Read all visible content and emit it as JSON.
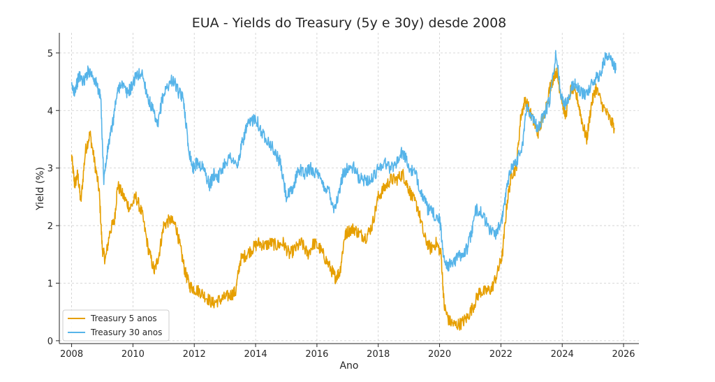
{
  "chart_data": {
    "type": "line",
    "title": "EUA - Yields do Treasury (5y e 30y) desde 2008",
    "xlabel": "Ano",
    "ylabel": "Yield (%)",
    "xlim": [
      2007.6,
      2026.5
    ],
    "ylim": [
      -0.05,
      5.35
    ],
    "xticks": [
      2008,
      2010,
      2012,
      2014,
      2016,
      2018,
      2020,
      2022,
      2024,
      2026
    ],
    "yticks": [
      0,
      1,
      2,
      3,
      4,
      5
    ],
    "grid": true,
    "legend_position": "lower-left",
    "series": [
      {
        "name": "Treasury 5 anos",
        "color": "#E69F00",
        "x": [
          2008.0,
          2008.1,
          2008.2,
          2008.3,
          2008.45,
          2008.6,
          2008.75,
          2008.9,
          2009.0,
          2009.1,
          2009.25,
          2009.4,
          2009.5,
          2009.7,
          2009.9,
          2010.1,
          2010.3,
          2010.5,
          2010.7,
          2010.85,
          2011.0,
          2011.2,
          2011.4,
          2011.55,
          2011.7,
          2011.85,
          2012.0,
          2012.2,
          2012.4,
          2012.6,
          2012.8,
          2013.0,
          2013.2,
          2013.35,
          2013.5,
          2013.7,
          2013.9,
          2014.1,
          2014.3,
          2014.5,
          2014.7,
          2014.9,
          2015.1,
          2015.3,
          2015.5,
          2015.7,
          2015.9,
          2016.1,
          2016.3,
          2016.5,
          2016.6,
          2016.75,
          2016.9,
          2017.0,
          2017.2,
          2017.4,
          2017.6,
          2017.8,
          2018.0,
          2018.2,
          2018.4,
          2018.6,
          2018.8,
          2018.95,
          2019.1,
          2019.3,
          2019.5,
          2019.7,
          2019.9,
          2020.05,
          2020.15,
          2020.3,
          2020.5,
          2020.7,
          2020.9,
          2021.1,
          2021.3,
          2021.5,
          2021.7,
          2021.9,
          2022.05,
          2022.2,
          2022.35,
          2022.5,
          2022.65,
          2022.8,
          2023.0,
          2023.2,
          2023.4,
          2023.6,
          2023.8,
          2023.95,
          2024.1,
          2024.3,
          2024.5,
          2024.65,
          2024.8,
          2024.95,
          2025.1,
          2025.3,
          2025.5,
          2025.7
        ],
        "values": [
          3.2,
          2.7,
          2.9,
          2.4,
          3.3,
          3.6,
          3.1,
          2.6,
          1.6,
          1.4,
          1.9,
          2.1,
          2.7,
          2.5,
          2.3,
          2.5,
          2.2,
          1.6,
          1.2,
          1.5,
          2.0,
          2.1,
          2.0,
          1.6,
          1.2,
          0.95,
          0.9,
          0.85,
          0.75,
          0.65,
          0.7,
          0.75,
          0.8,
          0.85,
          1.4,
          1.5,
          1.6,
          1.7,
          1.65,
          1.7,
          1.65,
          1.7,
          1.5,
          1.6,
          1.7,
          1.5,
          1.7,
          1.6,
          1.4,
          1.2,
          1.1,
          1.2,
          1.8,
          1.9,
          1.95,
          1.85,
          1.8,
          2.0,
          2.5,
          2.65,
          2.8,
          2.8,
          2.9,
          2.7,
          2.5,
          2.3,
          1.8,
          1.6,
          1.7,
          1.5,
          0.6,
          0.35,
          0.27,
          0.3,
          0.4,
          0.6,
          0.85,
          0.85,
          0.9,
          1.2,
          1.5,
          2.4,
          2.9,
          3.0,
          3.9,
          4.2,
          3.9,
          3.6,
          3.9,
          4.4,
          4.7,
          4.3,
          3.9,
          4.4,
          4.2,
          3.8,
          3.5,
          4.1,
          4.4,
          4.1,
          3.9,
          3.7
        ]
      },
      {
        "name": "Treasury 30 anos",
        "color": "#56B4E9",
        "x": [
          2008.0,
          2008.1,
          2008.25,
          2008.4,
          2008.55,
          2008.7,
          2008.85,
          2008.95,
          2009.05,
          2009.2,
          2009.35,
          2009.45,
          2009.6,
          2009.8,
          2009.95,
          2010.1,
          2010.3,
          2010.5,
          2010.65,
          2010.8,
          2010.95,
          2011.1,
          2011.3,
          2011.5,
          2011.65,
          2011.8,
          2011.95,
          2012.1,
          2012.3,
          2012.5,
          2012.65,
          2012.8,
          2013.0,
          2013.2,
          2013.4,
          2013.55,
          2013.7,
          2013.85,
          2014.0,
          2014.2,
          2014.4,
          2014.6,
          2014.8,
          2015.0,
          2015.2,
          2015.4,
          2015.6,
          2015.8,
          2016.0,
          2016.2,
          2016.4,
          2016.55,
          2016.7,
          2016.85,
          2017.0,
          2017.2,
          2017.4,
          2017.6,
          2017.8,
          2018.0,
          2018.2,
          2018.4,
          2018.6,
          2018.8,
          2019.0,
          2019.2,
          2019.4,
          2019.6,
          2019.8,
          2020.0,
          2020.15,
          2020.3,
          2020.5,
          2020.7,
          2020.9,
          2021.05,
          2021.2,
          2021.4,
          2021.6,
          2021.8,
          2022.0,
          2022.15,
          2022.3,
          2022.5,
          2022.7,
          2022.85,
          2023.0,
          2023.2,
          2023.4,
          2023.6,
          2023.8,
          2023.95,
          2024.1,
          2024.3,
          2024.45,
          2024.6,
          2024.8,
          2025.0,
          2025.2,
          2025.4,
          2025.6,
          2025.75
        ],
        "values": [
          4.4,
          4.35,
          4.6,
          4.5,
          4.7,
          4.6,
          4.4,
          4.2,
          2.8,
          3.4,
          3.8,
          4.2,
          4.5,
          4.3,
          4.4,
          4.6,
          4.65,
          4.2,
          4.0,
          3.7,
          4.2,
          4.4,
          4.55,
          4.3,
          4.2,
          3.4,
          3.0,
          3.1,
          3.0,
          2.7,
          2.9,
          2.85,
          3.1,
          3.2,
          3.0,
          3.4,
          3.7,
          3.8,
          3.9,
          3.6,
          3.5,
          3.3,
          3.1,
          2.5,
          2.6,
          3.0,
          2.9,
          3.0,
          2.9,
          2.7,
          2.6,
          2.3,
          2.5,
          2.9,
          3.0,
          3.0,
          2.8,
          2.8,
          2.8,
          3.0,
          3.1,
          3.0,
          3.1,
          3.3,
          3.0,
          2.9,
          2.6,
          2.3,
          2.2,
          2.1,
          1.4,
          1.3,
          1.4,
          1.5,
          1.6,
          1.9,
          2.3,
          2.2,
          1.95,
          1.85,
          2.0,
          2.5,
          3.0,
          3.1,
          3.4,
          4.1,
          3.9,
          3.7,
          3.9,
          4.2,
          5.0,
          4.3,
          4.1,
          4.4,
          4.5,
          4.3,
          4.3,
          4.5,
          4.6,
          4.9,
          4.9,
          4.7
        ]
      }
    ]
  }
}
